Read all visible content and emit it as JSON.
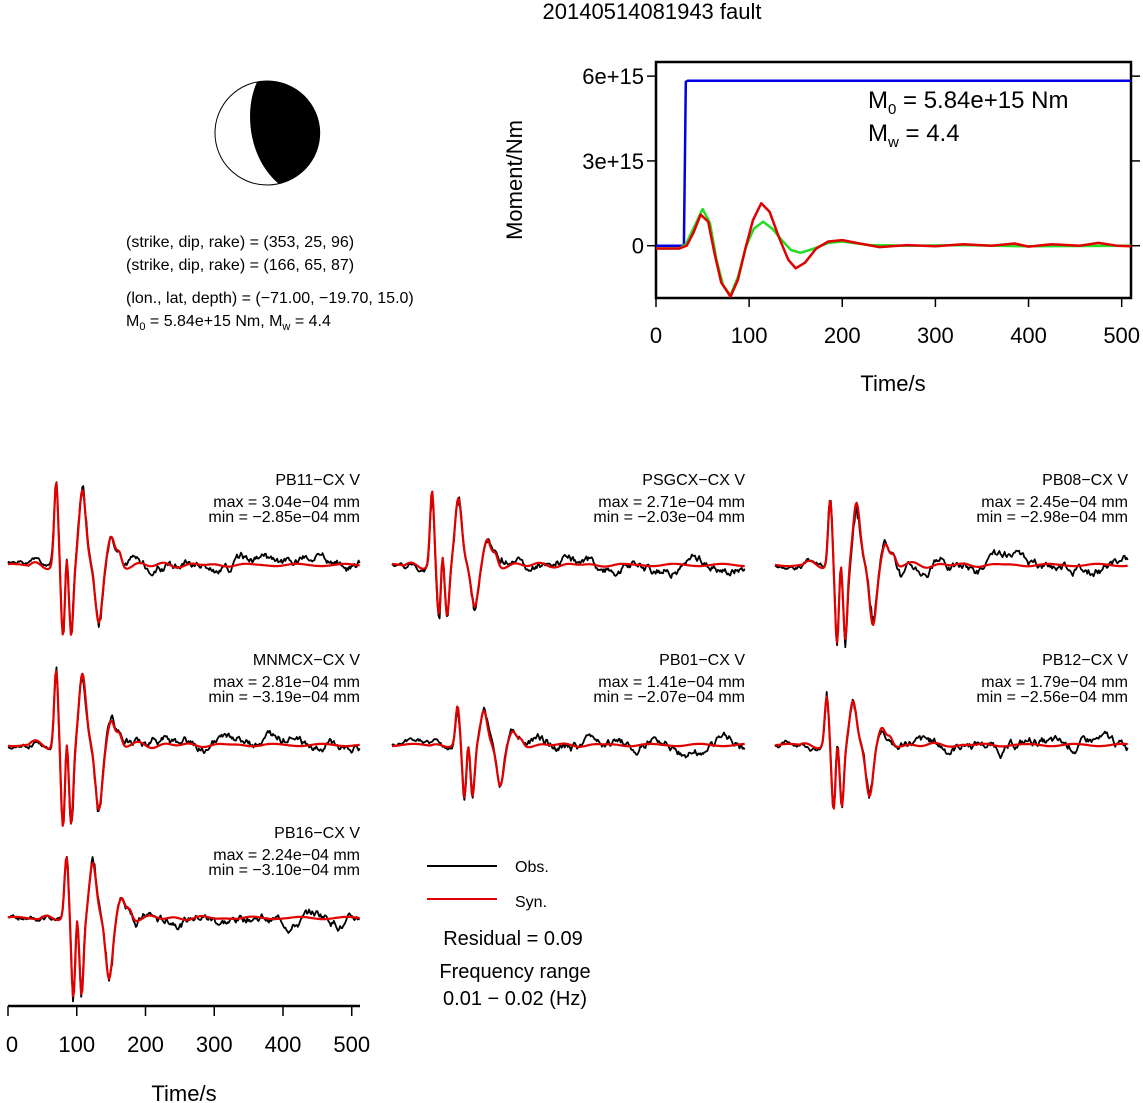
{
  "title": "20140514081943 fault",
  "colors": {
    "obs": "#000000",
    "syn": "#e00000",
    "moment": "#0000e0",
    "green": "#22dd22",
    "beach_fill": "#000000"
  },
  "info": {
    "plane1": "(strike, dip, rake) = (353, 25, 96)",
    "plane2": "(strike, dip, rake) = (166, 65, 87)",
    "location": "(lon., lat, depth) = (−71.00, −19.70, 15.0)",
    "m0_prefix": "M",
    "m0_sub": "0",
    "m0_rest": " = 5.84e+15 Nm, M",
    "mw_sub": "w",
    "mw_rest": " = 4.4"
  },
  "chart_data": [
    {
      "type": "line",
      "name": "moment-rate-function",
      "xlabel": "Time/s",
      "ylabel": "Moment/Nm",
      "xlim": [
        0,
        510
      ],
      "ylim": [
        -1850000000000000.0,
        6500000000000000.0
      ],
      "x_ticks": [
        0,
        100,
        200,
        300,
        400,
        500
      ],
      "x_tick_labels": [
        "0",
        "100",
        "200",
        "300",
        "400",
        "500"
      ],
      "y_ticks": [
        0,
        3000000000000000.0,
        6000000000000000.0
      ],
      "y_tick_labels": [
        "0",
        "3e+15",
        "6e+15"
      ],
      "annotation": {
        "m0_prefix": "M",
        "m0_sub": "0",
        "m0_rest": " = 5.84e+15 Nm",
        "mw_prefix": "M",
        "mw_sub": "w",
        "mw_rest": " = 4.4"
      },
      "series": [
        {
          "color": "blue",
          "points": [
            [
              0,
              0
            ],
            [
              30,
              0
            ],
            [
              31,
              3000000000000000.0
            ],
            [
              32,
              5800000000000000.0
            ],
            [
              34,
              5840000000000000.0
            ],
            [
              510,
              5840000000000000.0
            ]
          ]
        },
        {
          "color": "green",
          "points": [
            [
              0,
              -100000000000000.0
            ],
            [
              25,
              -100000000000000.0
            ],
            [
              32,
              50000000000000.0
            ],
            [
              40,
              600000000000000.0
            ],
            [
              50,
              1300000000000000.0
            ],
            [
              58,
              800000000000000.0
            ],
            [
              65,
              -500000000000000.0
            ],
            [
              72,
              -1400000000000000.0
            ],
            [
              80,
              -1750000000000000.0
            ],
            [
              88,
              -1100000000000000.0
            ],
            [
              97,
              0.0
            ],
            [
              105,
              600000000000000.0
            ],
            [
              115,
              850000000000000.0
            ],
            [
              125,
              600000000000000.0
            ],
            [
              135,
              200000000000000.0
            ],
            [
              145,
              -150000000000000.0
            ],
            [
              155,
              -250000000000000.0
            ],
            [
              170,
              -100000000000000.0
            ],
            [
              185,
              100000000000000.0
            ],
            [
              200,
              150000000000000.0
            ],
            [
              230,
              20000000000000.0
            ],
            [
              270,
              0.0
            ],
            [
              330,
              20000000000000.0
            ],
            [
              400,
              -20000000000000.0
            ],
            [
              510,
              0.0
            ]
          ]
        },
        {
          "color": "red",
          "points": [
            [
              0,
              -100000000000000.0
            ],
            [
              25,
              -100000000000000.0
            ],
            [
              33,
              0.0
            ],
            [
              40,
              450000000000000.0
            ],
            [
              48,
              1100000000000000.0
            ],
            [
              56,
              850000000000000.0
            ],
            [
              63,
              -300000000000000.0
            ],
            [
              70,
              -1300000000000000.0
            ],
            [
              80,
              -1800000000000000.0
            ],
            [
              88,
              -1200000000000000.0
            ],
            [
              96,
              -100000000000000.0
            ],
            [
              104,
              900000000000000.0
            ],
            [
              113,
              1500000000000000.0
            ],
            [
              122,
              1200000000000000.0
            ],
            [
              132,
              300000000000000.0
            ],
            [
              142,
              -500000000000000.0
            ],
            [
              150,
              -800000000000000.0
            ],
            [
              160,
              -600000000000000.0
            ],
            [
              172,
              -100000000000000.0
            ],
            [
              185,
              150000000000000.0
            ],
            [
              200,
              200000000000000.0
            ],
            [
              215,
              100000000000000.0
            ],
            [
              240,
              -50000000000000.0
            ],
            [
              270,
              20000000000000.0
            ],
            [
              300,
              -20000000000000.0
            ],
            [
              330,
              50000000000000.0
            ],
            [
              360,
              0.0
            ],
            [
              385,
              80000000000000.0
            ],
            [
              400,
              -30000000000000.0
            ],
            [
              425,
              50000000000000.0
            ],
            [
              455,
              0.0
            ],
            [
              475,
              100000000000000.0
            ],
            [
              495,
              0.0
            ],
            [
              510,
              -20000000000000.0
            ]
          ]
        }
      ]
    },
    {
      "type": "line",
      "name": "waveform-comparison",
      "xlabel": "Time/s",
      "xlim": [
        0,
        512
      ],
      "x_ticks": [
        0,
        100,
        200,
        300,
        400,
        500
      ],
      "x_tick_labels": [
        "0",
        "100",
        "200",
        "300",
        "400",
        "500"
      ],
      "legend": {
        "obs": "Obs.",
        "syn": "Syn."
      },
      "residual": "Residual = 0.09",
      "freq_label": "Frequency range",
      "freq_range": "0.01 − 0.02 (Hz)",
      "stations": [
        {
          "name": "PB11−CX V",
          "max": "max = 3.04e−04 mm",
          "min": "min = −2.85e−04 mm",
          "max_val": 0.000304,
          "min_val": -0.000285,
          "onset": 70,
          "seed": 1
        },
        {
          "name": "PSGCX−CX V",
          "max": "max = 2.71e−04 mm",
          "min": "min = −2.03e−04 mm",
          "max_val": 0.000271,
          "min_val": -0.000203,
          "onset": 58,
          "seed": 2
        },
        {
          "name": "PB08−CX V",
          "max": "max = 2.45e−04 mm",
          "min": "min = −2.98e−04 mm",
          "max_val": 0.000245,
          "min_val": -0.000298,
          "onset": 80,
          "seed": 3
        },
        {
          "name": "MNMCX−CX V",
          "max": "max = 2.81e−04 mm",
          "min": "min = −3.19e−04 mm",
          "max_val": 0.000281,
          "min_val": -0.000319,
          "onset": 70,
          "seed": 4
        },
        {
          "name": "PB01−CX V",
          "max": "max = 1.41e−04 mm",
          "min": "min = −2.07e−04 mm",
          "max_val": 0.000141,
          "min_val": -0.000207,
          "onset": 95,
          "seed": 5
        },
        {
          "name": "PB12−CX V",
          "max": "max = 1.79e−04 mm",
          "min": "min = −2.56e−04 mm",
          "max_val": 0.000179,
          "min_val": -0.000256,
          "onset": 75,
          "seed": 6
        },
        {
          "name": "PB16−CX V",
          "max": "max = 2.24e−04 mm",
          "min": "min = −3.10e−04 mm",
          "max_val": 0.000224,
          "min_val": -0.00031,
          "onset": 85,
          "seed": 7
        }
      ]
    }
  ]
}
